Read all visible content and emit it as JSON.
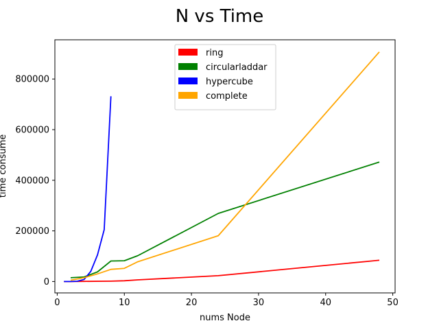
{
  "chart_data": {
    "type": "line",
    "title": "N vs Time",
    "xlabel": "nums Node",
    "ylabel": "time consume",
    "xlim": [
      -0.35,
      50.35
    ],
    "ylim": [
      -45000,
      955000
    ],
    "x_ticks": [
      0,
      10,
      20,
      30,
      40,
      50
    ],
    "y_ticks": [
      0,
      200000,
      400000,
      600000,
      800000
    ],
    "grid": false,
    "legend_position": "upper center",
    "series": [
      {
        "name": "ring",
        "color": "#ff0000",
        "x": [
          1,
          2,
          4,
          8,
          10,
          12,
          24,
          48
        ],
        "y": [
          0,
          0,
          500,
          1500,
          3000,
          6500,
          23000,
          84000
        ]
      },
      {
        "name": "circularladdar",
        "color": "#008000",
        "x": [
          2,
          4,
          6,
          8,
          10,
          12,
          24,
          48
        ],
        "y": [
          15000,
          18000,
          38000,
          81000,
          82000,
          102000,
          269000,
          472000
        ]
      },
      {
        "name": "hypercube",
        "color": "#0000ff",
        "x": [
          1,
          2,
          3,
          4,
          5,
          6,
          7,
          8
        ],
        "y": [
          0,
          0,
          1000,
          8000,
          40000,
          105000,
          205000,
          732000
        ]
      },
      {
        "name": "complete",
        "color": "#ffa500",
        "x": [
          2,
          4,
          6,
          8,
          10,
          12,
          24,
          48
        ],
        "y": [
          5000,
          15000,
          30000,
          48000,
          52000,
          78000,
          181000,
          907000
        ]
      }
    ]
  }
}
